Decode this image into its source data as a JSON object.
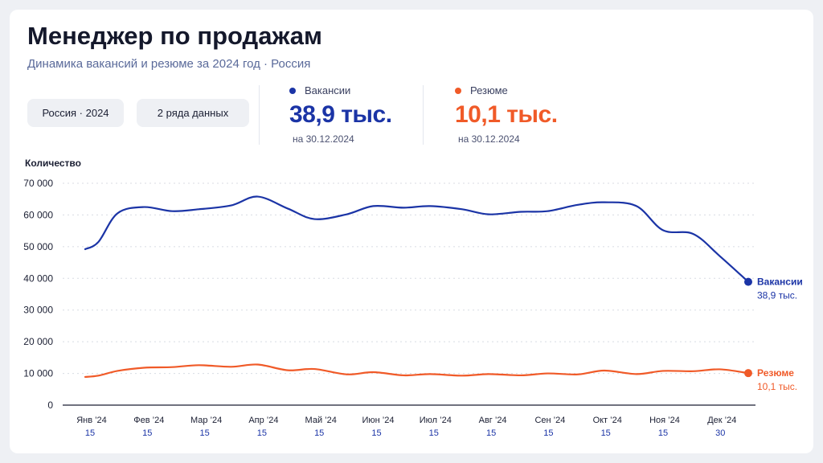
{
  "header": {
    "title": "Менеджер по продажам",
    "subtitle": "Динамика вакансий и резюме за 2024 год · Россия"
  },
  "filters": {
    "region_chip": "Россия · 2024",
    "series_chip": "2 ряда данных"
  },
  "stats": [
    {
      "label": "Вакансии",
      "value": "38,9 тыс.",
      "date": "на 30.12.2024",
      "color": "#1b34a6"
    },
    {
      "label": "Резюме",
      "value": "10,1 тыс.",
      "date": "на 30.12.2024",
      "color": "#f05a28"
    }
  ],
  "chart_data": {
    "type": "line",
    "ylabel": "Количество",
    "ylim": [
      0,
      70000
    ],
    "yticks": [
      0,
      10000,
      20000,
      30000,
      40000,
      50000,
      60000,
      70000
    ],
    "ytick_labels": [
      "0",
      "10 000",
      "20 000",
      "30 000",
      "40 000",
      "50 000",
      "60 000",
      "70 000"
    ],
    "grid": true,
    "xticks": [
      {
        "month": "Янв ’24",
        "day": "15"
      },
      {
        "month": "Фев ’24",
        "day": "15"
      },
      {
        "month": "Мар ’24",
        "day": "15"
      },
      {
        "month": "Апр ’24",
        "day": "15"
      },
      {
        "month": "Май ’24",
        "day": "15"
      },
      {
        "month": "Июн ’24",
        "day": "15"
      },
      {
        "month": "Июл ’24",
        "day": "15"
      },
      {
        "month": "Авг ’24",
        "day": "15"
      },
      {
        "month": "Сен ’24",
        "day": "15"
      },
      {
        "month": "Окт ’24",
        "day": "15"
      },
      {
        "month": "Ноя ’24",
        "day": "15"
      },
      {
        "month": "Дек ’24",
        "day": "30"
      }
    ],
    "x_dates": [
      "2024-01-15",
      "2024-01-22",
      "2024-02-01",
      "2024-02-15",
      "2024-03-01",
      "2024-03-15",
      "2024-04-01",
      "2024-04-15",
      "2024-05-01",
      "2024-05-15",
      "2024-06-01",
      "2024-06-15",
      "2024-07-01",
      "2024-07-15",
      "2024-08-01",
      "2024-08-15",
      "2024-09-01",
      "2024-09-15",
      "2024-10-01",
      "2024-10-15",
      "2024-11-01",
      "2024-11-15",
      "2024-12-01",
      "2024-12-15",
      "2024-12-30"
    ],
    "series": [
      {
        "name": "Вакансии",
        "color": "#1b34a6",
        "end_label": "38,9 тыс.",
        "values": [
          49200,
          51500,
          60500,
          62500,
          61200,
          61800,
          63000,
          65800,
          62000,
          58700,
          60200,
          62800,
          62300,
          62800,
          61800,
          60200,
          61000,
          61200,
          63200,
          64000,
          62800,
          55200,
          54000,
          47000,
          38900
        ]
      },
      {
        "name": "Резюме",
        "color": "#f05a28",
        "end_label": "10,1 тыс.",
        "values": [
          8900,
          9300,
          10800,
          11800,
          12000,
          12600,
          12100,
          12800,
          11000,
          11400,
          9700,
          10400,
          9400,
          9800,
          9300,
          9800,
          9400,
          10000,
          9700,
          10900,
          9800,
          10800,
          10700,
          11300,
          10100
        ]
      }
    ]
  }
}
